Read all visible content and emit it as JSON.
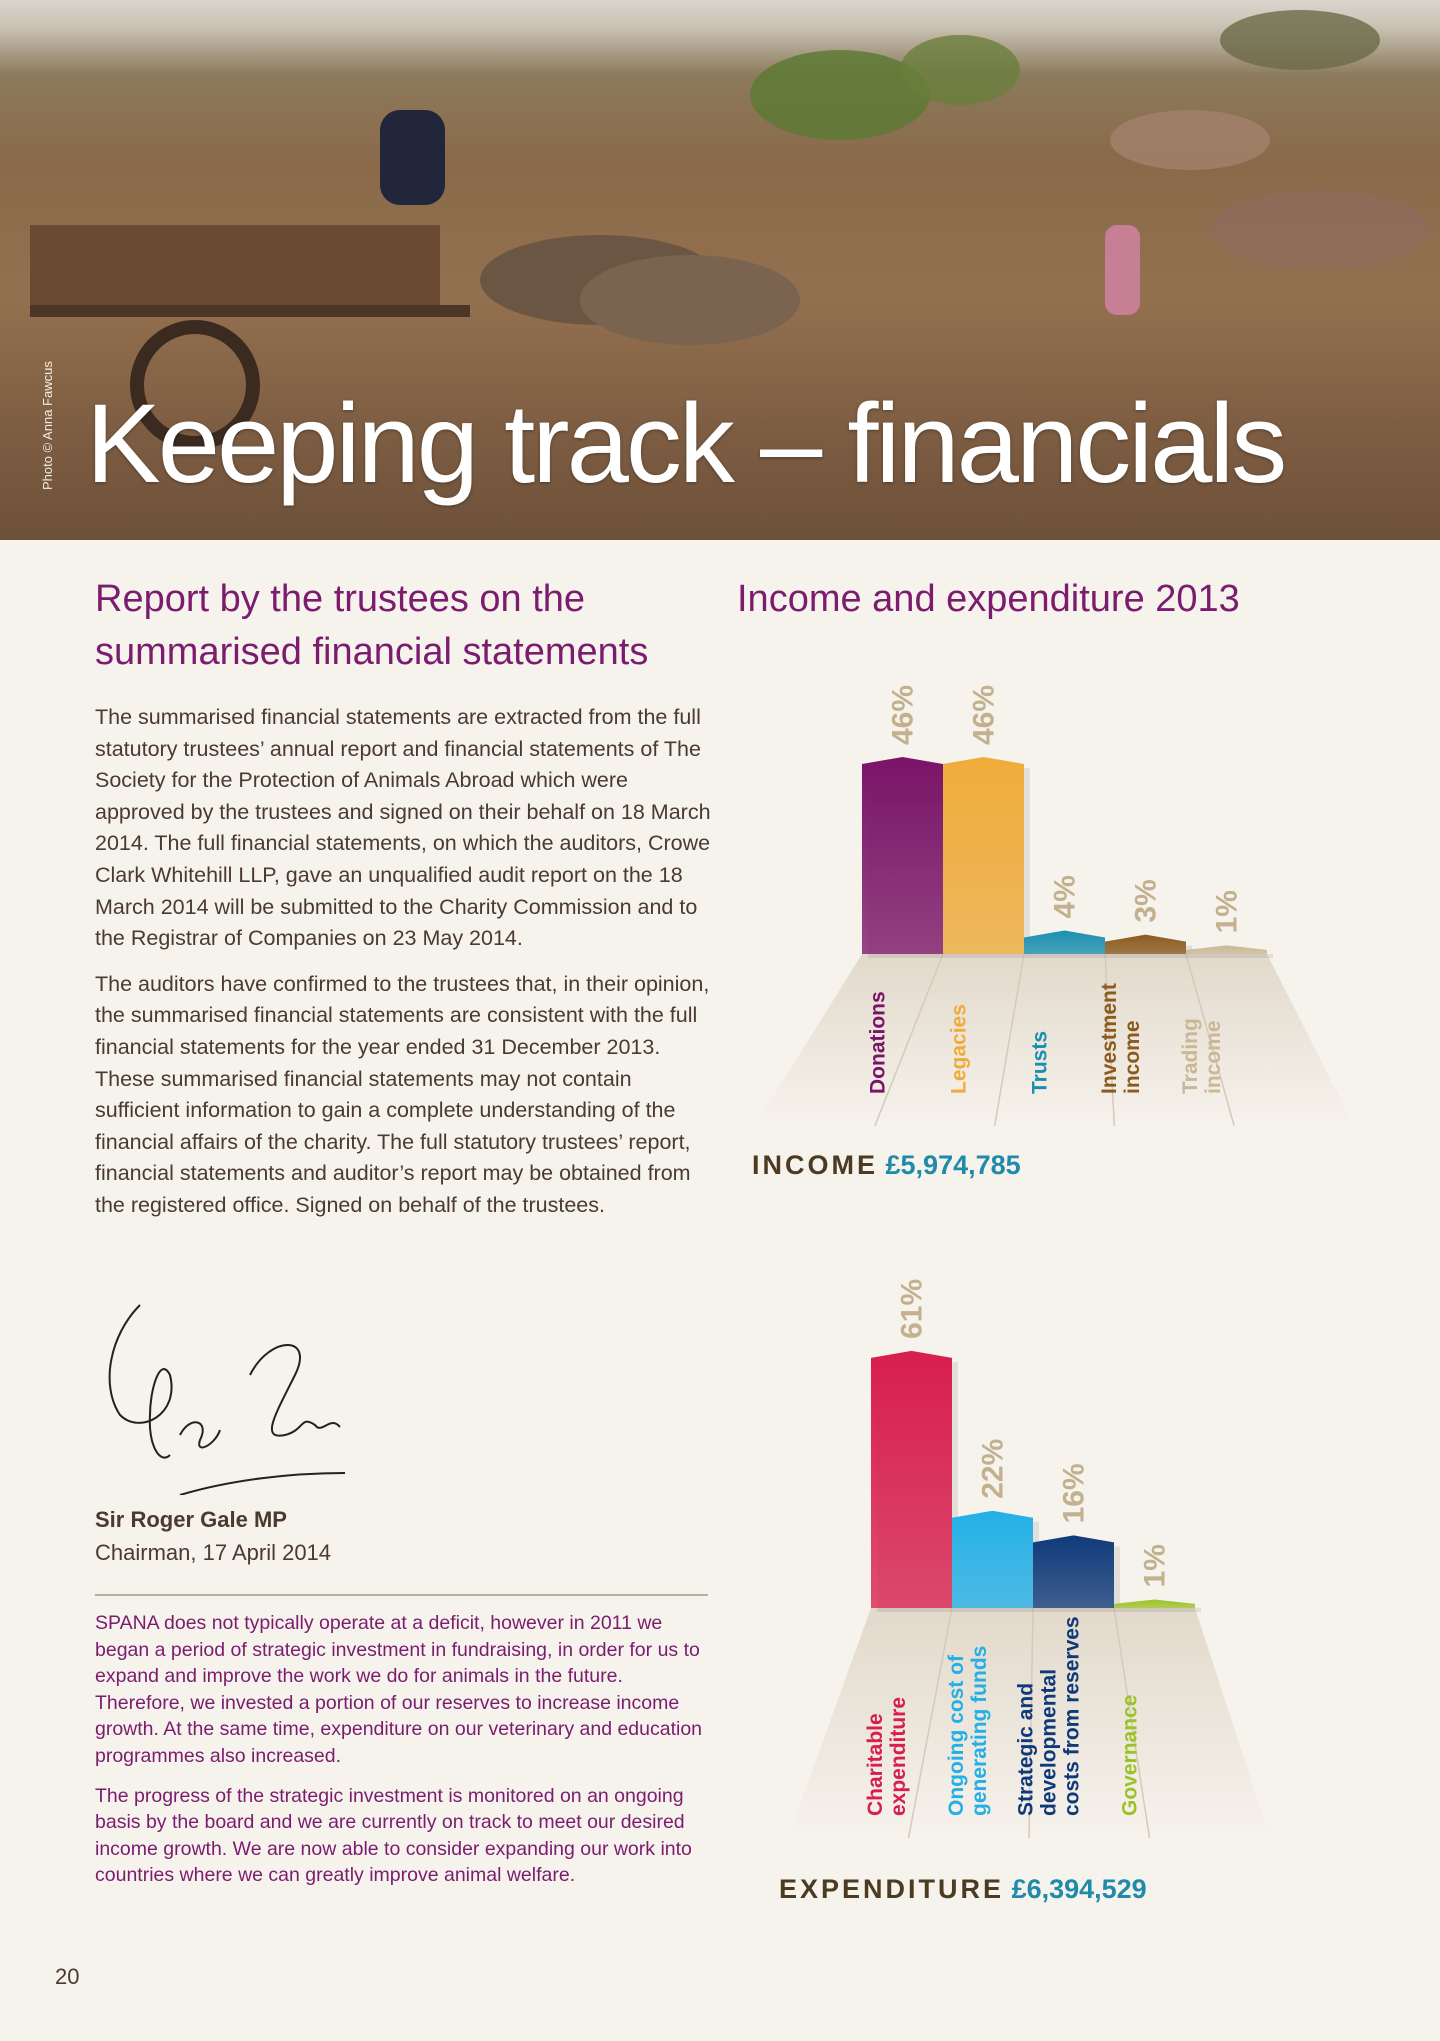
{
  "hero": {
    "title": "Keeping track – financials",
    "photo_credit": "Photo © Anna Fawcus"
  },
  "report": {
    "heading_line1": "Report by the trustees on the",
    "heading_line2": "summarised financial statements",
    "paragraphs": [
      "The summarised financial statements are extracted from the full statutory trustees’ annual report and financial statements of The Society for the Protection of Animals Abroad which were approved by the trustees and signed on their behalf on 18 March 2014. The full financial statements, on which the auditors, Crowe Clark Whitehill LLP, gave an unqualified audit report on the 18 March 2014 will be submitted to the Charity Commission and to the Registrar of Companies on 23 May 2014.",
      "The auditors have confirmed to the trustees that, in their opinion, the summarised financial statements are consistent with the full financial statements for the year ended 31 December 2013. These summarised financial statements may not contain sufficient information to gain a complete understanding of the financial affairs of the charity. The full statutory trustees’ report, financial statements and auditor’s report may be obtained from the registered office. Signed on behalf of the trustees."
    ],
    "signatory_name": "Sir Roger Gale MP",
    "signatory_role": "Chairman, 17 April 2014"
  },
  "note": {
    "paragraphs": [
      "SPANA does not typically operate at a deficit, however in 2011 we began a period of strategic investment in fundraising, in order for us to expand and improve the work we do for animals in the future. Therefore, we invested a portion of our reserves to increase income growth. At the same time, expenditure on our veterinary and education programmes also increased.",
      "The progress of the strategic investment is monitored on an ongoing basis by the board and we are currently on track to meet our desired income growth. We are now able to consider expanding our work into countries where we can greatly improve animal welfare."
    ]
  },
  "charts_heading": "Income and expenditure 2013",
  "page_number": "20",
  "colors": {
    "heading_purple": "#7b1c6f",
    "total_blue": "#1f8aaa",
    "value_label": "#c2b08e"
  },
  "chart_data": [
    {
      "type": "bar",
      "title": "",
      "categories": [
        "Donations",
        "Legacies",
        "Trusts",
        "Investment income",
        "Trading income"
      ],
      "category_lines": [
        [
          "Donations"
        ],
        [
          "Legacies"
        ],
        [
          "Trusts"
        ],
        [
          "Investment",
          "income"
        ],
        [
          "Trading",
          "income"
        ]
      ],
      "values": [
        46,
        46,
        4,
        3,
        1
      ],
      "value_labels": [
        "46%",
        "46%",
        "4%",
        "3%",
        "1%"
      ],
      "colors": [
        "#7a1468",
        "#f0ac3a",
        "#1b8fb0",
        "#8a5a1e",
        "#c8b896"
      ],
      "unit": "%",
      "total_label": "INCOME",
      "total_value": "£5,974,785"
    },
    {
      "type": "bar",
      "title": "",
      "categories": [
        "Charitable expenditure",
        "Ongoing cost of generating funds",
        "Strategic and developmental costs from reserves",
        "Governance"
      ],
      "category_lines": [
        [
          "Charitable",
          "expenditure"
        ],
        [
          "Ongoing cost of",
          "generating funds"
        ],
        [
          "Strategic and",
          "developmental",
          "costs from reserves"
        ],
        [
          "Governance"
        ]
      ],
      "values": [
        61,
        22,
        16,
        1
      ],
      "value_labels": [
        "61%",
        "22%",
        "16%",
        "1%"
      ],
      "colors": [
        "#d81e4e",
        "#23b0e6",
        "#0f3a7a",
        "#9cc22a"
      ],
      "unit": "%",
      "total_label": "EXPENDITURE",
      "total_value": "£6,394,529"
    }
  ]
}
